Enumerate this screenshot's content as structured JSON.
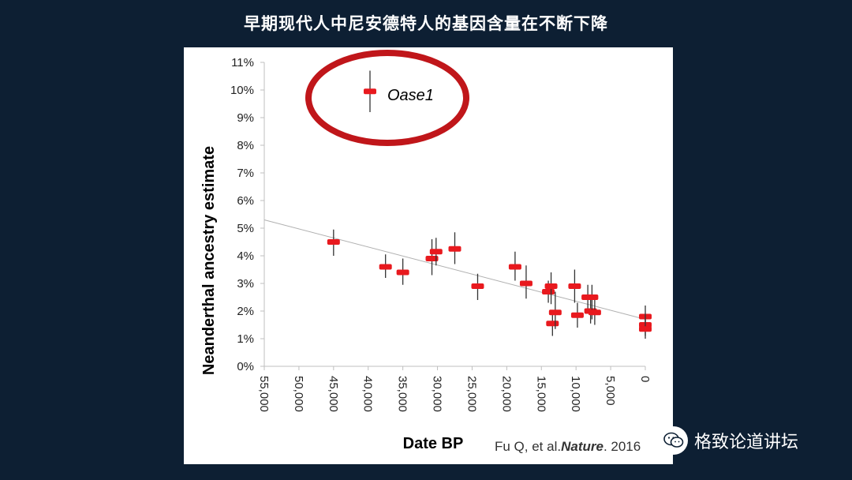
{
  "slide": {
    "title": "早期现代人中尼安德特人的基因含量在不断下降",
    "citation_prefix": "Fu Q, et al.",
    "citation_journal": "Nature",
    "citation_year": ". 2016"
  },
  "legend": {
    "label": "Oase1"
  },
  "watermark": {
    "text": "格致论道讲坛",
    "icon": "wechat-icon"
  },
  "colors": {
    "background": "#0d1f33",
    "marker": "#e8191e",
    "circle": "#c0161a",
    "trend": "#b0b0b0",
    "error_bar": "#333333"
  },
  "chart_data": {
    "type": "scatter",
    "xlabel": "Date BP",
    "ylabel": "Neanderthal ancestry estimate",
    "xlim": [
      55000,
      0
    ],
    "ylim": [
      0,
      11
    ],
    "x_reversed": true,
    "x_ticks": [
      "55,000",
      "50,000",
      "45,000",
      "40,000",
      "35,000",
      "30,000",
      "25,000",
      "20,000",
      "15,000",
      "10,000",
      "5,000",
      "0"
    ],
    "x_tick_values": [
      55000,
      50000,
      45000,
      40000,
      35000,
      30000,
      25000,
      20000,
      15000,
      10000,
      5000,
      0
    ],
    "y_ticks": [
      "0%",
      "1%",
      "2%",
      "3%",
      "4%",
      "5%",
      "6%",
      "7%",
      "8%",
      "9%",
      "10%",
      "11%"
    ],
    "y_tick_values": [
      0,
      1,
      2,
      3,
      4,
      5,
      6,
      7,
      8,
      9,
      10,
      11
    ],
    "trendline": {
      "x": [
        55000,
        0
      ],
      "y": [
        5.3,
        1.7
      ]
    },
    "series": [
      {
        "name": "Oase1",
        "points": [
          {
            "x": 45000,
            "y": 4.5,
            "lo": 4.0,
            "hi": 4.95
          },
          {
            "x": 37500,
            "y": 3.6,
            "lo": 3.2,
            "hi": 4.05
          },
          {
            "x": 35000,
            "y": 3.4,
            "lo": 2.95,
            "hi": 3.9
          },
          {
            "x": 30800,
            "y": 3.9,
            "lo": 3.3,
            "hi": 4.6
          },
          {
            "x": 30200,
            "y": 4.15,
            "lo": 3.65,
            "hi": 4.65
          },
          {
            "x": 27500,
            "y": 4.25,
            "lo": 3.7,
            "hi": 4.85
          },
          {
            "x": 24200,
            "y": 2.9,
            "lo": 2.4,
            "hi": 3.35
          },
          {
            "x": 18800,
            "y": 3.6,
            "lo": 3.1,
            "hi": 4.15
          },
          {
            "x": 17200,
            "y": 3.0,
            "lo": 2.45,
            "hi": 3.65
          },
          {
            "x": 14000,
            "y": 2.7,
            "lo": 2.3,
            "hi": 3.1
          },
          {
            "x": 13600,
            "y": 2.9,
            "lo": 2.25,
            "hi": 3.4
          },
          {
            "x": 13400,
            "y": 1.55,
            "lo": 1.1,
            "hi": 2.0
          },
          {
            "x": 13000,
            "y": 1.95,
            "lo": 1.35,
            "hi": 2.7
          },
          {
            "x": 10200,
            "y": 2.9,
            "lo": 2.3,
            "hi": 3.5
          },
          {
            "x": 9800,
            "y": 1.85,
            "lo": 1.4,
            "hi": 2.3
          },
          {
            "x": 8300,
            "y": 2.5,
            "lo": 2.0,
            "hi": 2.95
          },
          {
            "x": 7900,
            "y": 2.0,
            "lo": 1.55,
            "hi": 2.5
          },
          {
            "x": 7700,
            "y": 2.5,
            "lo": 1.7,
            "hi": 2.95
          },
          {
            "x": 7300,
            "y": 1.95,
            "lo": 1.5,
            "hi": 2.4
          },
          {
            "x": 0,
            "y": 1.8,
            "lo": 1.4,
            "hi": 2.2
          },
          {
            "x": 0,
            "y": 1.5,
            "lo": 1.1,
            "hi": 1.9
          },
          {
            "x": 0,
            "y": 1.35,
            "lo": 1.0,
            "hi": 1.7
          }
        ]
      }
    ],
    "legend_marker": {
      "y": 9.95,
      "lo": 9.2,
      "hi": 10.7
    }
  }
}
